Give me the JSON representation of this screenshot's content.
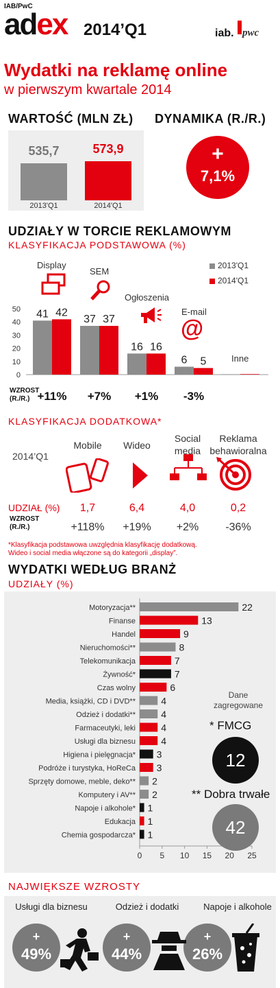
{
  "header": {
    "source": "IAB/PwC",
    "logo_main": "ad",
    "logo_accent": "ex",
    "period": "2014’Q1",
    "iab_logo": "iab.",
    "pwc_logo": "pwc"
  },
  "title": {
    "line1": "Wydatki na reklamę online",
    "line2": "w pierwszym kwartale 2014"
  },
  "value": {
    "heading": "WARTOŚĆ (MLN ZŁ)",
    "bars": [
      {
        "label": "2013'Q1",
        "value": "535,7",
        "num": 535.7,
        "color": "#8c8c8c"
      },
      {
        "label": "2014'Q1",
        "value": "573,9",
        "num": 573.9,
        "color": "#e3000f"
      }
    ]
  },
  "dynamics": {
    "heading": "DYNAMIKA (R./R.)",
    "sign": "+",
    "value": "7,1%"
  },
  "share": {
    "heading": "UDZIAŁY W TORCIE REKLAMOWYM",
    "subheading": "KLASYFIKACJA PODSTAWOWA (%)",
    "growth_label_1": "WZROST",
    "growth_label_2": "(R./R.)",
    "legend": [
      "2013'Q1",
      "2014'Q1"
    ]
  },
  "extra": {
    "heading": "KLASYFIKACJA DODATKOWA*",
    "period_label": "2014’Q1",
    "share_label": "UDZIAŁ (%)",
    "growth_label_1": "WZROST",
    "growth_label_2": "(R./R.)",
    "items": [
      {
        "name": "Mobile",
        "share": "1,7",
        "growth": "+118%"
      },
      {
        "name": "Wideo",
        "share": "6,4",
        "growth": "+19%"
      },
      {
        "name": "Social\nmedia",
        "share": "4,0",
        "growth": "+2%"
      },
      {
        "name": "Reklama\nbehawioralna",
        "share": "0,2",
        "growth": "-36%"
      }
    ],
    "footnote1": "*Klasyfikacja podstawowa uwzględnia klasyfikację dodatkową.",
    "footnote2": "Wideo i social media włączone są do kategorii „display”."
  },
  "industry": {
    "heading": "WYDATKI WEDŁUG BRANŻ",
    "subheading": "UDZIAŁY (%)",
    "aggregated_1": "Dane",
    "aggregated_2": "zagregowane",
    "fmcg_label": "* FMCG",
    "fmcg_value": "12",
    "durable_label": "** Dobra trwałe",
    "durable_value": "42"
  },
  "growths": {
    "heading": "NAJWIĘKSZE WZROSTY",
    "items": [
      {
        "name": "Usługi dla biznesu",
        "sign": "+",
        "value": "49%"
      },
      {
        "name": "Odzież i dodatki",
        "sign": "+",
        "value": "44%"
      },
      {
        "name": "Napoje i alkohole",
        "sign": "+",
        "value": "26%"
      }
    ]
  },
  "chart_data": [
    {
      "type": "bar",
      "title": "WARTOŚĆ (MLN ZŁ)",
      "categories": [
        "2013'Q1",
        "2014'Q1"
      ],
      "values": [
        535.7,
        573.9
      ]
    },
    {
      "type": "bar",
      "title": "UDZIAŁY W TORCIE REKLAMOWYM",
      "categories": [
        "Display",
        "SEM",
        "Ogłoszenia",
        "E-mail",
        "Inne"
      ],
      "series": [
        {
          "name": "2013'Q1",
          "color": "#8c8c8c",
          "values": [
            41,
            37,
            16,
            6,
            0.3
          ]
        },
        {
          "name": "2014'Q1",
          "color": "#e3000f",
          "values": [
            42,
            37,
            16,
            5,
            0.4
          ]
        }
      ],
      "value_labels": [
        [
          "41",
          "42"
        ],
        [
          "37",
          "37"
        ],
        [
          "16",
          "16"
        ],
        [
          "6",
          "5"
        ],
        [
          "",
          ""
        ]
      ],
      "growth": [
        "+11%",
        "+7%",
        "+1%",
        "-3%",
        ""
      ],
      "yticks": [
        0,
        10,
        20,
        30,
        40,
        50
      ],
      "ylim": [
        0,
        50
      ]
    },
    {
      "type": "bar",
      "title": "WYDATKI WEDŁUG BRANŻ",
      "orientation": "horizontal",
      "categories": [
        "Motoryzacja**",
        "Finanse",
        "Handel",
        "Nieruchomości**",
        "Telekomunikacja",
        "Żywność*",
        "Czas wolny",
        "Media, książki, CD i DVD**",
        "Odzież i dodatki**",
        "Farmaceutyki, leki",
        "Usługi dla biznesu",
        "Higiena i pielęgnacja*",
        "Podróże i turystyka, HoReCa",
        "Sprzęty domowe, meble, deko**",
        "Komputery i AV**",
        "Napoje i alkohole*",
        "Edukacja",
        "Chemia gospodarcza*"
      ],
      "values": [
        22,
        13,
        9,
        8,
        7,
        7,
        6,
        4,
        4,
        4,
        4,
        3,
        3,
        2,
        2,
        1,
        1,
        1
      ],
      "colors": [
        "#8c8c8c",
        "#e3000f",
        "#e3000f",
        "#8c8c8c",
        "#e3000f",
        "#111111",
        "#e3000f",
        "#8c8c8c",
        "#8c8c8c",
        "#e3000f",
        "#e3000f",
        "#111111",
        "#e3000f",
        "#8c8c8c",
        "#8c8c8c",
        "#111111",
        "#e3000f",
        "#111111"
      ],
      "xticks": [
        0,
        5,
        10,
        15,
        20,
        25
      ],
      "xlim": [
        0,
        25
      ]
    }
  ]
}
